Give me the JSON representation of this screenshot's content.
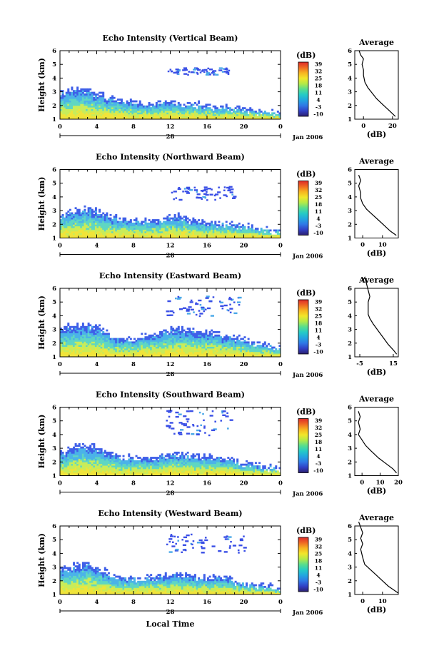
{
  "figure": {
    "xlabel": "Local Time",
    "colorbar_unit": "(dB)",
    "colorbar_ticks": [
      "39",
      "32",
      "25",
      "18",
      "11",
      "4",
      "-3",
      "-10"
    ],
    "colorbar_range": [
      -10,
      39
    ],
    "colormap": [
      "#2c1f6e",
      "#3140c6",
      "#2f78e6",
      "#22a6e0",
      "#25cbc6",
      "#57dd8e",
      "#b3ea48",
      "#f2e62a",
      "#f7b520",
      "#ef6a23",
      "#de2a2a"
    ],
    "echo_color_stops": [
      "#3f5fe8",
      "#4bb3e8",
      "#5fd6c2",
      "#c8ec5a",
      "#f0e43a"
    ],
    "date_label": "Jan 2006",
    "day_label": "28"
  },
  "chart_data": [
    {
      "type": "heatmap",
      "title": "Echo Intensity (Vertical Beam)",
      "ylabel": "Height (km)",
      "x_ticks": [
        "0",
        "4",
        "8",
        "12",
        "16",
        "20",
        "0"
      ],
      "xlim": [
        0,
        24
      ],
      "y_ticks": [
        "1",
        "2",
        "3",
        "4",
        "5",
        "6"
      ],
      "ylim": [
        1,
        6
      ],
      "echo_top_km": [
        [
          0,
          3.0
        ],
        [
          1,
          3.2
        ],
        [
          2,
          3.4
        ],
        [
          3,
          3.3
        ],
        [
          4,
          3.0
        ],
        [
          5,
          2.8
        ],
        [
          6,
          2.6
        ],
        [
          7,
          2.4
        ],
        [
          8,
          2.3
        ],
        [
          9,
          2.3
        ],
        [
          10,
          2.2
        ],
        [
          11,
          2.3
        ],
        [
          12,
          2.4
        ],
        [
          13,
          2.3
        ],
        [
          14,
          2.2
        ],
        [
          15,
          2.2
        ],
        [
          16,
          2.1
        ],
        [
          17,
          2.1
        ],
        [
          18,
          2.0
        ],
        [
          19,
          1.9
        ],
        [
          20,
          1.9
        ],
        [
          21,
          1.8
        ],
        [
          22,
          1.7
        ],
        [
          23,
          1.7
        ],
        [
          24,
          1.6
        ]
      ],
      "sparse_layer_km": [
        4.3,
        4.8
      ],
      "sparse_layer_hours": [
        11.5,
        18.5
      ],
      "profile": {
        "title": "Average",
        "xlabel": "(dB)",
        "x_ticks": [
          "0",
          "20"
        ],
        "x_tick_values": [
          0,
          20
        ],
        "xlim": [
          -6,
          24
        ],
        "points": [
          [
            -3,
            6.0
          ],
          [
            -2,
            5.7
          ],
          [
            0,
            5.4
          ],
          [
            -1,
            5.0
          ],
          [
            0,
            4.6
          ],
          [
            0,
            4.2
          ],
          [
            1,
            3.7
          ],
          [
            3,
            3.3
          ],
          [
            6,
            2.9
          ],
          [
            9,
            2.5
          ],
          [
            13,
            2.1
          ],
          [
            17,
            1.7
          ],
          [
            20,
            1.4
          ],
          [
            22,
            1.2
          ]
        ]
      }
    },
    {
      "type": "heatmap",
      "title": "Echo Intensity (Northward Beam)",
      "ylabel": "Height (km)",
      "x_ticks": [
        "0",
        "4",
        "8",
        "12",
        "16",
        "20",
        "0"
      ],
      "xlim": [
        0,
        24
      ],
      "y_ticks": [
        "1",
        "2",
        "3",
        "4",
        "5",
        "6"
      ],
      "ylim": [
        1,
        6
      ],
      "echo_top_km": [
        [
          0,
          2.8
        ],
        [
          1,
          3.0
        ],
        [
          2,
          3.2
        ],
        [
          3,
          3.3
        ],
        [
          4,
          3.1
        ],
        [
          5,
          2.8
        ],
        [
          6,
          2.6
        ],
        [
          7,
          2.4
        ],
        [
          8,
          2.4
        ],
        [
          9,
          2.3
        ],
        [
          10,
          2.3
        ],
        [
          11,
          2.5
        ],
        [
          12,
          2.6
        ],
        [
          13,
          2.7
        ],
        [
          14,
          2.5
        ],
        [
          15,
          2.3
        ],
        [
          16,
          2.3
        ],
        [
          17,
          2.2
        ],
        [
          18,
          2.2
        ],
        [
          19,
          2.1
        ],
        [
          20,
          2.0
        ],
        [
          21,
          1.9
        ],
        [
          22,
          1.8
        ],
        [
          23,
          1.7
        ],
        [
          24,
          1.6
        ]
      ],
      "sparse_layer_km": [
        3.8,
        4.8
      ],
      "sparse_layer_hours": [
        12.0,
        19.0
      ],
      "profile": {
        "title": "Average",
        "xlabel": "(dB)",
        "x_ticks": [
          "0",
          "10"
        ],
        "x_tick_values": [
          0,
          10
        ],
        "xlim": [
          -4,
          18
        ],
        "points": [
          [
            -2,
            5.6
          ],
          [
            -1,
            5.2
          ],
          [
            -2,
            4.8
          ],
          [
            -1,
            4.3
          ],
          [
            -1,
            3.9
          ],
          [
            0,
            3.5
          ],
          [
            2,
            3.1
          ],
          [
            5,
            2.7
          ],
          [
            8,
            2.3
          ],
          [
            11,
            1.9
          ],
          [
            14,
            1.5
          ],
          [
            17,
            1.2
          ]
        ]
      }
    },
    {
      "type": "heatmap",
      "title": "Echo Intensity (Eastward Beam)",
      "ylabel": "Height (km)",
      "x_ticks": [
        "0",
        "4",
        "8",
        "12",
        "16",
        "20",
        "0"
      ],
      "xlim": [
        0,
        24
      ],
      "y_ticks": [
        "1",
        "2",
        "3",
        "4",
        "5",
        "6"
      ],
      "ylim": [
        1,
        6
      ],
      "echo_top_km": [
        [
          0,
          3.2
        ],
        [
          1,
          3.4
        ],
        [
          2,
          3.4
        ],
        [
          3,
          3.5
        ],
        [
          4,
          3.3
        ],
        [
          5,
          3.0
        ],
        [
          6,
          2.6
        ],
        [
          7,
          2.5
        ],
        [
          8,
          2.5
        ],
        [
          9,
          2.6
        ],
        [
          10,
          2.7
        ],
        [
          11,
          2.9
        ],
        [
          12,
          3.1
        ],
        [
          13,
          3.2
        ],
        [
          14,
          3.1
        ],
        [
          15,
          3.0
        ],
        [
          16,
          2.9
        ],
        [
          17,
          2.8
        ],
        [
          18,
          2.6
        ],
        [
          19,
          2.5
        ],
        [
          20,
          2.4
        ],
        [
          21,
          2.2
        ],
        [
          22,
          2.0
        ],
        [
          23,
          1.9
        ],
        [
          24,
          1.8
        ]
      ],
      "sparse_layer_km": [
        4.0,
        5.5
      ],
      "sparse_layer_hours": [
        11.5,
        19.5
      ],
      "profile": {
        "title": "Average",
        "xlabel": "(dB)",
        "x_ticks": [
          "-5",
          "15"
        ],
        "x_tick_values": [
          -5,
          15
        ],
        "xlim": [
          -8,
          18
        ],
        "points": [
          [
            -4,
            6.5
          ],
          [
            -3,
            6.6
          ],
          [
            -2,
            6.8
          ],
          [
            1,
            5.4
          ],
          [
            0,
            5.0
          ],
          [
            0,
            4.5
          ],
          [
            0,
            4.1
          ],
          [
            1,
            3.8
          ],
          [
            3,
            3.4
          ],
          [
            6,
            2.9
          ],
          [
            9,
            2.4
          ],
          [
            12,
            1.9
          ],
          [
            15,
            1.5
          ],
          [
            17,
            1.2
          ]
        ]
      }
    },
    {
      "type": "heatmap",
      "title": "Echo Intensity (Southward Beam)",
      "ylabel": "Height (km)",
      "x_ticks": [
        "0",
        "4",
        "8",
        "12",
        "16",
        "20",
        "0"
      ],
      "xlim": [
        0,
        24
      ],
      "y_ticks": [
        "1",
        "2",
        "3",
        "4",
        "5",
        "6"
      ],
      "ylim": [
        1,
        6
      ],
      "echo_top_km": [
        [
          0,
          2.9
        ],
        [
          1,
          3.0
        ],
        [
          2,
          3.3
        ],
        [
          3,
          3.3
        ],
        [
          4,
          3.2
        ],
        [
          5,
          2.9
        ],
        [
          6,
          2.7
        ],
        [
          7,
          2.5
        ],
        [
          8,
          2.5
        ],
        [
          9,
          2.4
        ],
        [
          10,
          2.5
        ],
        [
          11,
          2.6
        ],
        [
          12,
          2.7
        ],
        [
          13,
          2.8
        ],
        [
          14,
          2.7
        ],
        [
          15,
          2.6
        ],
        [
          16,
          2.5
        ],
        [
          17,
          2.5
        ],
        [
          18,
          2.4
        ],
        [
          19,
          2.2
        ],
        [
          20,
          2.0
        ],
        [
          21,
          1.9
        ],
        [
          22,
          1.8
        ],
        [
          23,
          1.7
        ],
        [
          24,
          1.6
        ]
      ],
      "sparse_layer_km": [
        4.0,
        5.8
      ],
      "sparse_layer_hours": [
        11.5,
        18.5
      ],
      "profile": {
        "title": "Average",
        "xlabel": "(dB)",
        "x_ticks": [
          "0",
          "10",
          "20"
        ],
        "x_tick_values": [
          0,
          10,
          20
        ],
        "xlim": [
          -4,
          20
        ],
        "points": [
          [
            -2,
            5.7
          ],
          [
            -1,
            5.3
          ],
          [
            -2,
            4.9
          ],
          [
            -1,
            4.4
          ],
          [
            -2,
            4.0
          ],
          [
            0,
            3.6
          ],
          [
            2,
            3.2
          ],
          [
            5,
            2.8
          ],
          [
            9,
            2.3
          ],
          [
            13,
            1.9
          ],
          [
            17,
            1.5
          ],
          [
            19,
            1.2
          ]
        ]
      }
    },
    {
      "type": "heatmap",
      "title": "Echo Intensity (Westward Beam)",
      "ylabel": "Height (km)",
      "x_ticks": [
        "0",
        "4",
        "8",
        "12",
        "16",
        "20",
        "0"
      ],
      "xlim": [
        0,
        24
      ],
      "y_ticks": [
        "1",
        "2",
        "3",
        "4",
        "5",
        "6"
      ],
      "ylim": [
        1,
        6
      ],
      "echo_top_km": [
        [
          0,
          3.0
        ],
        [
          1,
          3.1
        ],
        [
          2,
          3.3
        ],
        [
          3,
          3.3
        ],
        [
          4,
          3.2
        ],
        [
          5,
          2.8
        ],
        [
          6,
          2.5
        ],
        [
          7,
          2.3
        ],
        [
          8,
          2.3
        ],
        [
          9,
          2.3
        ],
        [
          10,
          2.4
        ],
        [
          11,
          2.4
        ],
        [
          12,
          2.5
        ],
        [
          13,
          2.6
        ],
        [
          14,
          2.5
        ],
        [
          15,
          2.4
        ],
        [
          16,
          2.4
        ],
        [
          17,
          2.3
        ],
        [
          18,
          2.3
        ],
        [
          19,
          2.1
        ],
        [
          20,
          2.0
        ],
        [
          21,
          1.9
        ],
        [
          22,
          1.8
        ],
        [
          23,
          1.7
        ],
        [
          24,
          1.6
        ]
      ],
      "sparse_layer_km": [
        4.0,
        5.5
      ],
      "sparse_layer_hours": [
        11.5,
        20.0
      ],
      "profile": {
        "title": "Average",
        "xlabel": "(dB)",
        "x_ticks": [
          "0",
          "10"
        ],
        "x_tick_values": [
          0,
          10
        ],
        "xlim": [
          -4,
          18
        ],
        "points": [
          [
            -2,
            6.3
          ],
          [
            -1,
            5.9
          ],
          [
            0,
            5.5
          ],
          [
            -1,
            5.1
          ],
          [
            0,
            4.7
          ],
          [
            -1,
            4.3
          ],
          [
            0,
            3.7
          ],
          [
            1,
            3.2
          ],
          [
            4,
            2.8
          ],
          [
            7,
            2.4
          ],
          [
            10,
            2.0
          ],
          [
            13,
            1.6
          ],
          [
            16,
            1.3
          ],
          [
            18,
            1.1
          ]
        ]
      }
    }
  ]
}
